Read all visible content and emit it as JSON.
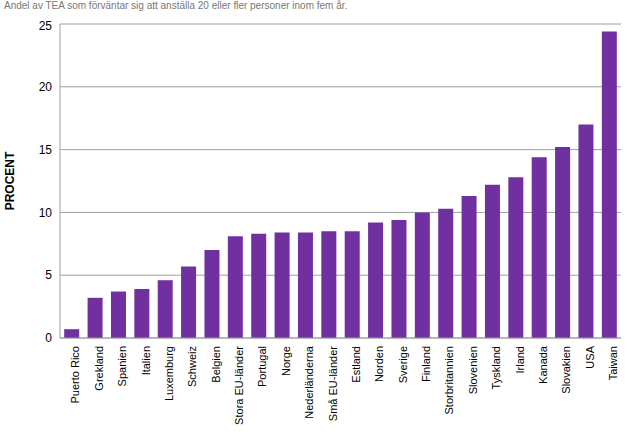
{
  "chart_data": {
    "type": "bar",
    "title": "Andel av TEA som förväntar sig att anställa 20 eller fler personer inom fem år.",
    "y_label": "PROCENT",
    "categories": [
      "Puerto Rico",
      "Grekland",
      "Spanien",
      "Italien",
      "Luxemburg",
      "Schweiz",
      "Belgien",
      "Stora EU-länder",
      "Portugal",
      "Norge",
      "Nederländerna",
      "Små EU-länder",
      "Estland",
      "Norden",
      "Sverige",
      "Finland",
      "Storbritannien",
      "Slovenien",
      "Tyskland",
      "Irland",
      "Kanada",
      "Slovakien",
      "USA",
      "Taiwan"
    ],
    "values": [
      0.7,
      3.2,
      3.7,
      3.9,
      4.6,
      5.7,
      7.0,
      8.1,
      8.3,
      8.4,
      8.4,
      8.5,
      8.5,
      9.2,
      9.4,
      10.0,
      10.3,
      11.3,
      12.2,
      12.8,
      14.4,
      15.2,
      17.0,
      24.4
    ],
    "color": "#7030a0",
    "ylim": [
      0,
      25
    ],
    "yticks": [
      0,
      5,
      10,
      15,
      20,
      25
    ],
    "grid": true
  }
}
